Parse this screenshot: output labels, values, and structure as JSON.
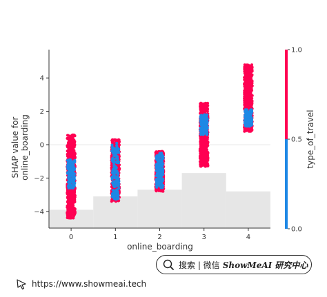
{
  "chart_data": {
    "type": "scatter",
    "title": "",
    "xlabel": "online_boarding",
    "ylabel_line1": "SHAP value for",
    "ylabel_line2": "online_boarding",
    "x_categories": [
      0,
      1,
      2,
      3,
      4
    ],
    "x_tick_labels": [
      "0",
      "1",
      "2",
      "3",
      "4"
    ],
    "y_ticks": [
      4,
      2,
      0,
      -2,
      -4
    ],
    "y_tick_labels": [
      "4",
      "2",
      "0",
      "−2",
      "−4"
    ],
    "xlim": [
      -0.5,
      4.5
    ],
    "ylim": [
      -5.0,
      5.7
    ],
    "zero_line": 0,
    "groups": [
      {
        "x": 0,
        "ymin": -4.4,
        "ymax": 0.6,
        "blue_min": -2.6,
        "blue_max": -0.9
      },
      {
        "x": 1,
        "ymin": -3.4,
        "ymax": 0.3,
        "blue_min": -3.3,
        "blue_max": 0.1
      },
      {
        "x": 2,
        "ymin": -2.8,
        "ymax": -0.4,
        "blue_min": -2.6,
        "blue_max": -0.5
      },
      {
        "x": 3,
        "ymin": -1.3,
        "ymax": 2.5,
        "blue_min": 0.6,
        "blue_max": 1.8
      },
      {
        "x": 4,
        "ymin": 0.8,
        "ymax": 4.8,
        "blue_min": 1.1,
        "blue_max": 2.1
      }
    ],
    "histogram": {
      "edges": [
        -0.5,
        0.5,
        1.5,
        2.5,
        3.5,
        4.5
      ],
      "tops": [
        -3.9,
        -3.1,
        -2.7,
        -1.7,
        -2.8
      ]
    },
    "colorbar": {
      "label": "type_of_travel",
      "ticks": [
        "1.0",
        "0.5",
        "0.0"
      ],
      "high_color": "#ff0052",
      "low_color": "#1e88e5"
    },
    "colors": {
      "high": "#ff0052",
      "low": "#1e88e5",
      "histogram": "#e6e6e6",
      "axis": "#333333",
      "zero_line": "#e8e8e8"
    }
  },
  "watermark": {
    "search_text": "搜索 | 微信",
    "brand_text": "ShowMeAI 研究中心",
    "url": "https://www.showmeai.tech"
  }
}
